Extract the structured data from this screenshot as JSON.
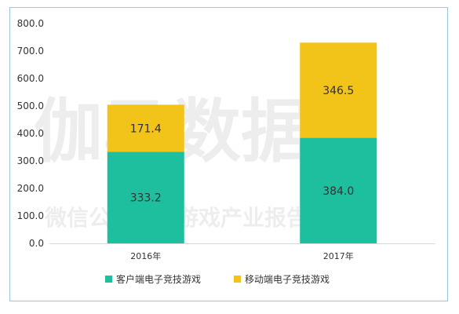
{
  "chart_data": {
    "type": "bar",
    "stacked": true,
    "categories": [
      "2016年",
      "2017年"
    ],
    "series": [
      {
        "name": "客户端电子竞技游戏",
        "values": [
          333.2,
          384.0
        ],
        "color": "#1dbf9f"
      },
      {
        "name": "移动端电子竞技游戏",
        "values": [
          171.4,
          346.5
        ],
        "color": "#f2c318"
      }
    ],
    "data_labels": [
      [
        "333.2",
        "384.0"
      ],
      [
        "171.4",
        "346.5"
      ]
    ],
    "ylim": [
      0,
      800
    ],
    "yticks": [
      "0.0",
      "100.0",
      "200.0",
      "300.0",
      "400.0",
      "500.0",
      "600.0",
      "700.0",
      "800.0"
    ],
    "grid": false,
    "legend_position": "bottom",
    "title": "",
    "xlabel": "",
    "ylabel": ""
  },
  "watermark": {
    "main": "伽马数据",
    "sub": "微信公众号：游戏产业报告"
  }
}
